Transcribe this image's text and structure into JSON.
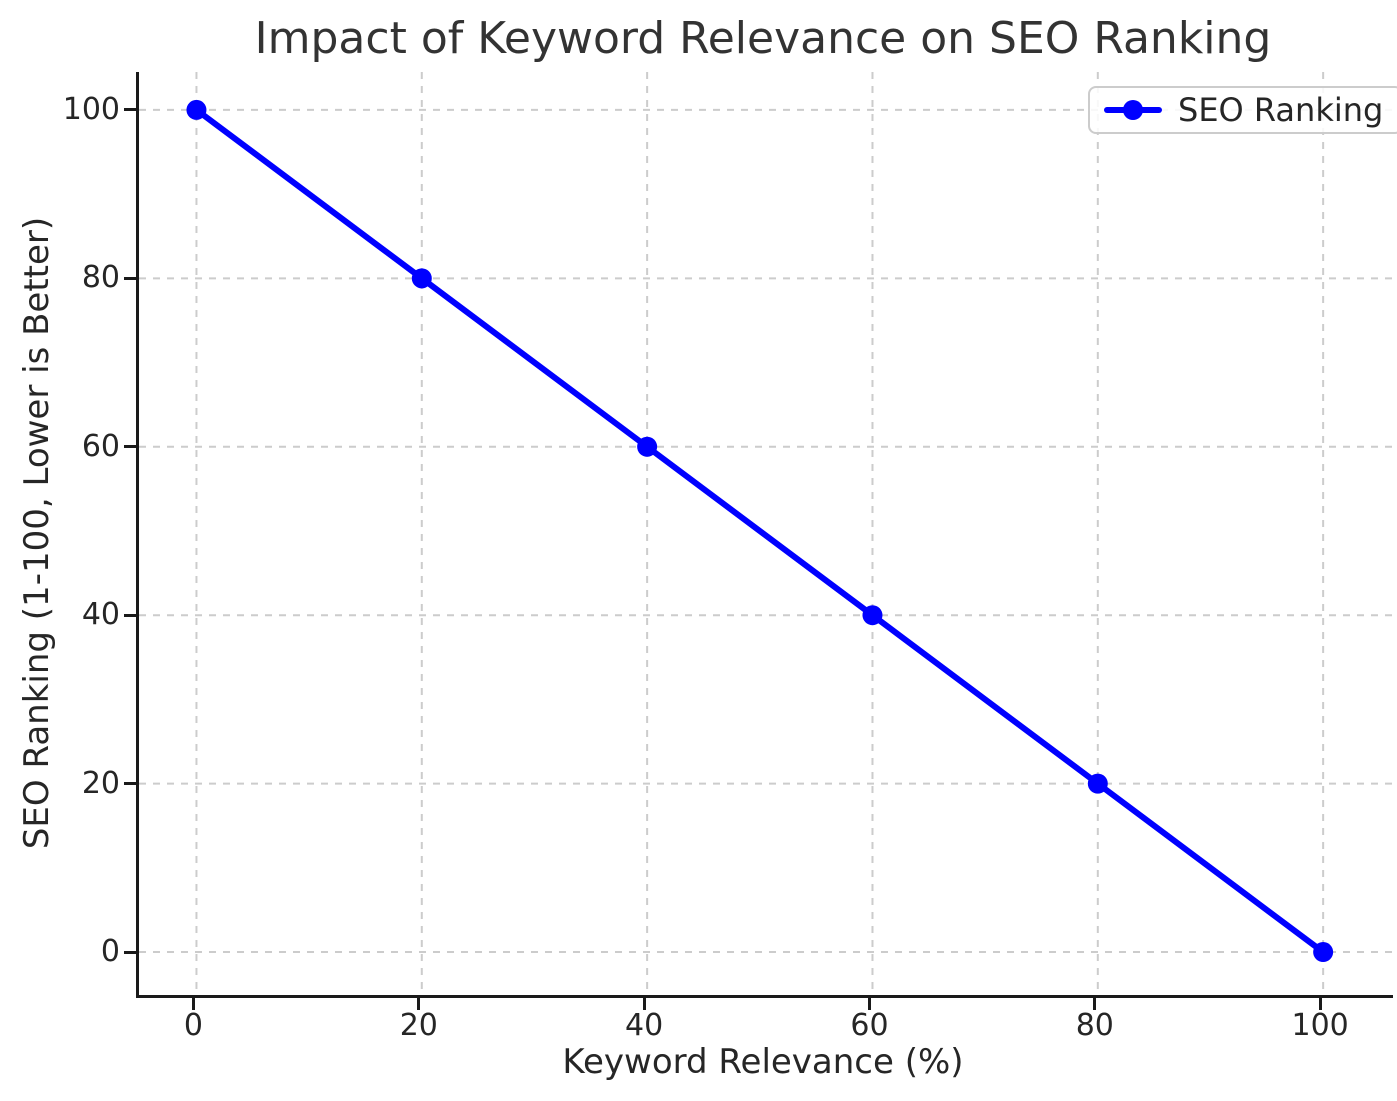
{
  "chart_data": {
    "type": "line",
    "title": "Impact of Keyword Relevance on SEO Ranking",
    "xlabel": "Keyword Relevance (%)",
    "ylabel": "SEO Ranking (1-100, Lower is Better)",
    "x": [
      0,
      20,
      40,
      60,
      80,
      100
    ],
    "series": [
      {
        "name": "SEO Ranking",
        "values": [
          100,
          80,
          60,
          40,
          20,
          0
        ],
        "color": "#0000ff",
        "marker": "circle",
        "line_width": 6,
        "marker_radius": 10
      }
    ],
    "xticks": [
      0,
      20,
      40,
      60,
      80,
      100
    ],
    "yticks": [
      0,
      20,
      40,
      60,
      80,
      100
    ],
    "xtick_labels": [
      "0",
      "20",
      "40",
      "60",
      "80",
      "100"
    ],
    "ytick_labels": [
      "0",
      "20",
      "40",
      "60",
      "80",
      "100"
    ],
    "xlim": [
      -5.1,
      106.2
    ],
    "ylim": [
      -5.1,
      104.5
    ],
    "grid": {
      "on": true,
      "style": "dashed",
      "color": "#cccccc"
    },
    "legend": {
      "position": "upper right",
      "entries": [
        "SEO Ranking"
      ]
    },
    "spine_color": "#1a1a1a",
    "background": "#ffffff"
  }
}
